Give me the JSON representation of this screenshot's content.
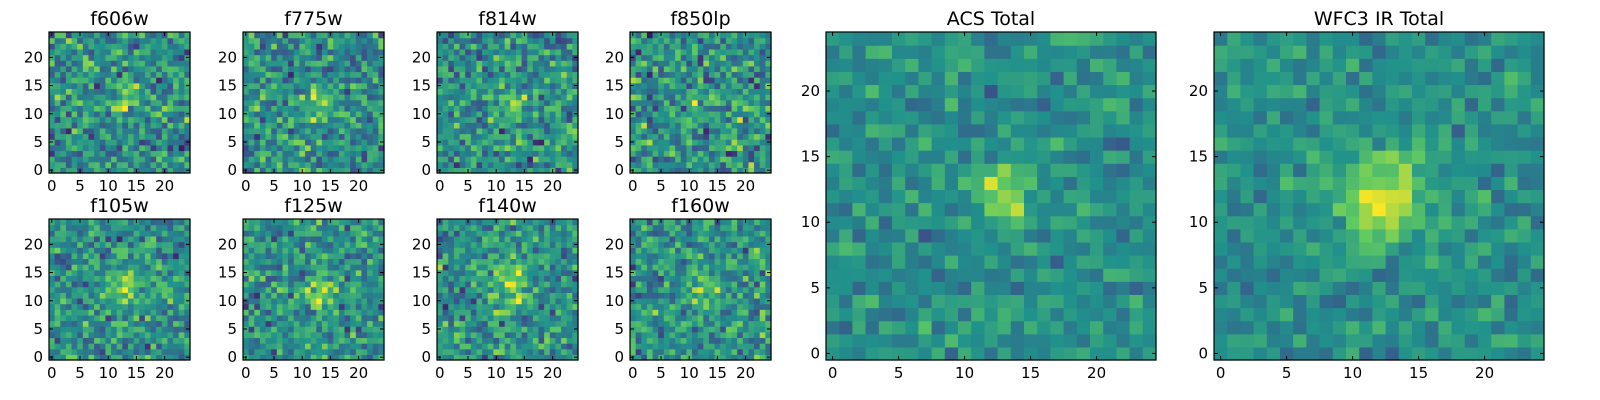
{
  "figure": {
    "background": "#ffffff",
    "colormap": "viridis",
    "colormap_stops": [
      "#440154",
      "#3b528b",
      "#21918c",
      "#5ec962",
      "#fde725"
    ]
  },
  "chart_data": [
    {
      "type": "heatmap",
      "title": "f606w",
      "grid": 25,
      "x_ticks": [
        0,
        5,
        10,
        15,
        20
      ],
      "y_ticks": [
        0,
        5,
        10,
        15,
        20
      ],
      "xlim": [
        0,
        24
      ],
      "ylim": [
        0,
        24
      ],
      "source_center": [
        12.5,
        12
      ],
      "source_amplitude": 0.35,
      "source_sigma": 1.6,
      "noise_level": 0.45,
      "noise_seed": 11
    },
    {
      "type": "heatmap",
      "title": "f775w",
      "grid": 25,
      "x_ticks": [
        0,
        5,
        10,
        15,
        20
      ],
      "y_ticks": [
        0,
        5,
        10,
        15,
        20
      ],
      "xlim": [
        0,
        24
      ],
      "ylim": [
        0,
        24
      ],
      "source_center": [
        13,
        11.5
      ],
      "source_amplitude": 0.3,
      "source_sigma": 1.6,
      "noise_level": 0.45,
      "noise_seed": 23
    },
    {
      "type": "heatmap",
      "title": "f814w",
      "grid": 25,
      "x_ticks": [
        0,
        5,
        10,
        15,
        20
      ],
      "y_ticks": [
        0,
        5,
        10,
        15,
        20
      ],
      "xlim": [
        0,
        24
      ],
      "ylim": [
        0,
        24
      ],
      "source_center": [
        13,
        12
      ],
      "source_amplitude": 0.32,
      "source_sigma": 1.6,
      "noise_level": 0.45,
      "noise_seed": 37
    },
    {
      "type": "heatmap",
      "title": "f850lp",
      "grid": 25,
      "x_ticks": [
        0,
        5,
        10,
        15,
        20
      ],
      "y_ticks": [
        0,
        5,
        10,
        15,
        20
      ],
      "xlim": [
        0,
        24
      ],
      "ylim": [
        0,
        24
      ],
      "source_center": [
        13,
        12
      ],
      "source_amplitude": 0.2,
      "source_sigma": 1.6,
      "noise_level": 0.5,
      "noise_seed": 41
    },
    {
      "type": "heatmap",
      "title": "f105w",
      "grid": 25,
      "x_ticks": [
        0,
        5,
        10,
        15,
        20
      ],
      "y_ticks": [
        0,
        5,
        10,
        15,
        20
      ],
      "xlim": [
        0,
        24
      ],
      "ylim": [
        0,
        24
      ],
      "source_center": [
        13,
        12
      ],
      "source_amplitude": 0.3,
      "source_sigma": 2.2,
      "noise_level": 0.4,
      "noise_seed": 53
    },
    {
      "type": "heatmap",
      "title": "f125w",
      "grid": 25,
      "x_ticks": [
        0,
        5,
        10,
        15,
        20
      ],
      "y_ticks": [
        0,
        5,
        10,
        15,
        20
      ],
      "xlim": [
        0,
        24
      ],
      "ylim": [
        0,
        24
      ],
      "source_center": [
        13,
        11
      ],
      "source_amplitude": 0.28,
      "source_sigma": 2.2,
      "noise_level": 0.42,
      "noise_seed": 67
    },
    {
      "type": "heatmap",
      "title": "f140w",
      "grid": 25,
      "x_ticks": [
        0,
        5,
        10,
        15,
        20
      ],
      "y_ticks": [
        0,
        5,
        10,
        15,
        20
      ],
      "xlim": [
        0,
        24
      ],
      "ylim": [
        0,
        24
      ],
      "source_center": [
        12,
        13
      ],
      "source_amplitude": 0.3,
      "source_sigma": 3,
      "noise_level": 0.42,
      "noise_seed": 71
    },
    {
      "type": "heatmap",
      "title": "f160w",
      "grid": 25,
      "x_ticks": [
        0,
        5,
        10,
        15,
        20
      ],
      "y_ticks": [
        0,
        5,
        10,
        15,
        20
      ],
      "xlim": [
        0,
        24
      ],
      "ylim": [
        0,
        24
      ],
      "source_center": [
        12.5,
        11.5
      ],
      "source_amplitude": 0.3,
      "source_sigma": 2.2,
      "noise_level": 0.42,
      "noise_seed": 83
    },
    {
      "type": "heatmap",
      "title": "ACS Total",
      "grid": 25,
      "x_ticks": [
        0,
        5,
        10,
        15,
        20
      ],
      "y_ticks": [
        0,
        5,
        10,
        15,
        20
      ],
      "xlim": [
        0,
        24
      ],
      "ylim": [
        0,
        24
      ],
      "source_center": [
        13,
        12
      ],
      "source_amplitude": 0.45,
      "source_sigma": 1.3,
      "noise_level": 0.25,
      "noise_seed": 97
    },
    {
      "type": "heatmap",
      "title": "WFC3 IR Total",
      "grid": 25,
      "x_ticks": [
        0,
        5,
        10,
        15,
        20
      ],
      "y_ticks": [
        0,
        5,
        10,
        15,
        20
      ],
      "xlim": [
        0,
        24
      ],
      "ylim": [
        0,
        24
      ],
      "source_center": [
        12.5,
        12
      ],
      "source_amplitude": 0.45,
      "source_sigma": 2.2,
      "noise_level": 0.25,
      "noise_seed": 101
    }
  ]
}
